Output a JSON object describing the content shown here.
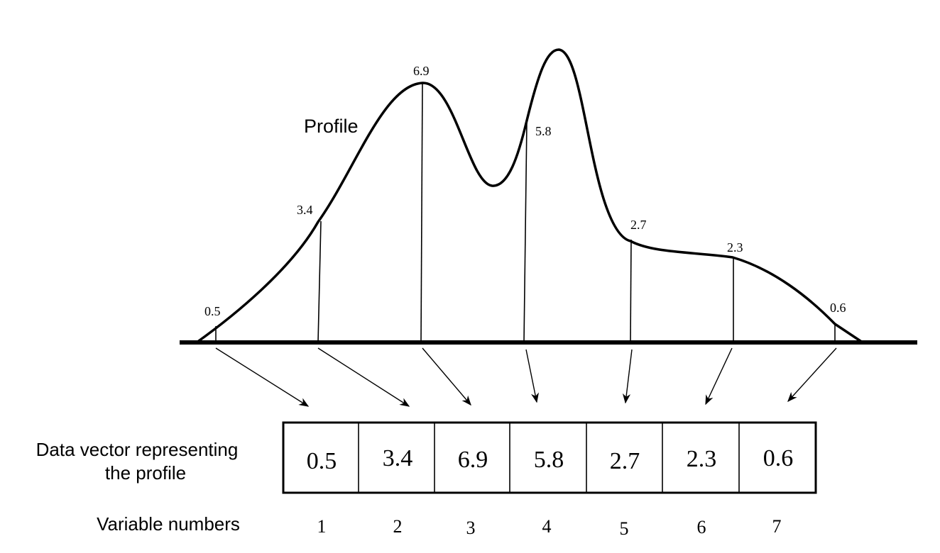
{
  "diagram": {
    "profile_label": "Profile",
    "data_vector_label_line1": "Data vector representing",
    "data_vector_label_line2": "the profile",
    "variable_numbers_label": "Variable numbers",
    "samples": [
      {
        "value": "0.5",
        "variable": "1"
      },
      {
        "value": "3.4",
        "variable": "2"
      },
      {
        "value": "6.9",
        "variable": "3"
      },
      {
        "value": "5.8",
        "variable": "4"
      },
      {
        "value": "2.7",
        "variable": "5"
      },
      {
        "value": "2.3",
        "variable": "6"
      },
      {
        "value": "0.6",
        "variable": "7"
      }
    ]
  }
}
